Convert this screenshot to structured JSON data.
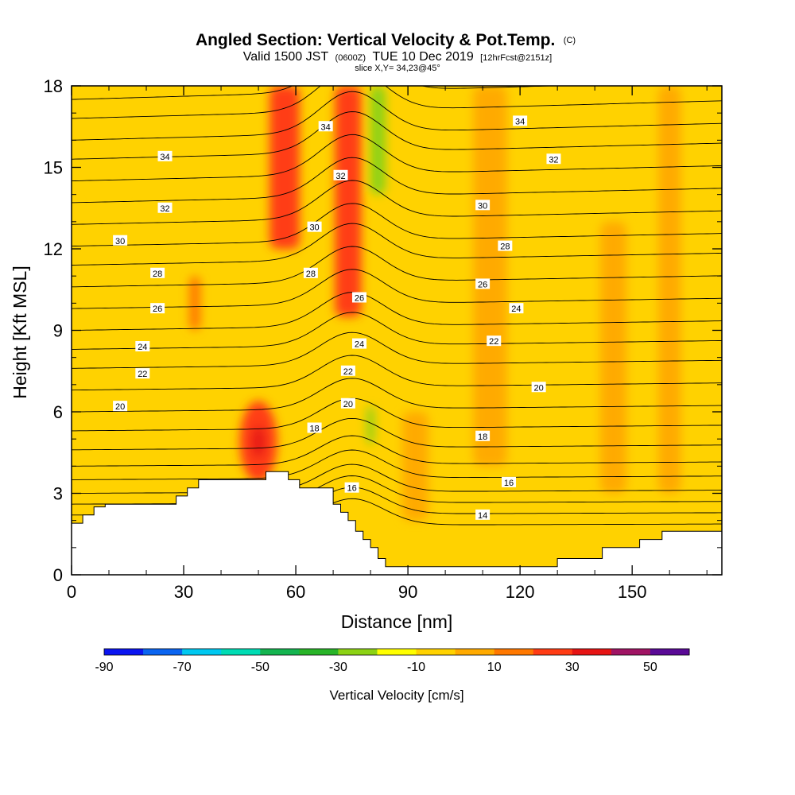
{
  "chart_data": {
    "type": "heatmap",
    "title": "Angled Section: Vertical Velocity & Pot.Temp.",
    "title_unit": "(C)",
    "subtitle": {
      "prefix": "Valid 1500 JST",
      "utc": "(0600Z)",
      "date": "TUE 10 Dec 2019",
      "forecast": "[12hrFcst@2151z]"
    },
    "slice_label": "slice X,Y= 34,23@45°",
    "xlabel": "Distance [nm]",
    "ylabel": "Height [Kft MSL]",
    "xlim": [
      0,
      174
    ],
    "ylim": [
      0,
      18
    ],
    "x_ticks": [
      0,
      30,
      60,
      90,
      120,
      150
    ],
    "y_ticks": [
      0,
      3,
      6,
      9,
      12,
      15,
      18
    ],
    "colorbar": {
      "label": "Vertical Velocity [cm/s]",
      "tick_labels": [
        "-90",
        "-70",
        "-50",
        "-30",
        "-10",
        "10",
        "30",
        "50"
      ],
      "tick_values": [
        -90,
        -70,
        -50,
        -30,
        -10,
        10,
        30,
        50
      ],
      "levels": [
        -90,
        -80,
        -70,
        -60,
        -50,
        -40,
        -30,
        -20,
        -10,
        0,
        10,
        20,
        30,
        40,
        50,
        60
      ],
      "colors": [
        "#0a14f0",
        "#0a64f0",
        "#00c8f0",
        "#00dcb4",
        "#14b450",
        "#28b428",
        "#8cd214",
        "#ffff00",
        "#ffd200",
        "#ffaa00",
        "#ff7800",
        "#ff3c14",
        "#e61414",
        "#a01464",
        "#5a0a96"
      ]
    },
    "background_field_color": "#ffd200",
    "velocity_features": [
      {
        "type": "column",
        "x": 57,
        "width": 8,
        "y0": 12,
        "y1": 18,
        "value": 22
      },
      {
        "type": "column",
        "x": 74,
        "width": 7,
        "y0": 9.5,
        "y1": 18,
        "value": 28
      },
      {
        "type": "column",
        "x": 82,
        "width": 4,
        "y0": 14,
        "y1": 18,
        "value": -28
      },
      {
        "type": "column",
        "x": 80,
        "width": 2,
        "y0": 4.8,
        "y1": 6.2,
        "value": -28
      },
      {
        "type": "blob",
        "x": 50,
        "y": 4.9,
        "rx": 5,
        "ry": 1.5,
        "value": 24
      },
      {
        "type": "blob",
        "x": 50,
        "y": 4.9,
        "rx": 1.8,
        "ry": 0.6,
        "value": 32
      },
      {
        "type": "column",
        "x": 69,
        "width": 4,
        "y0": 3,
        "y1": 7,
        "value": -8
      },
      {
        "type": "column",
        "x": 33,
        "width": 3,
        "y0": 9,
        "y1": 11,
        "value": 16
      },
      {
        "type": "column",
        "x": 10,
        "width": 8,
        "y0": 14,
        "y1": 18,
        "value": -8
      },
      {
        "type": "column",
        "x": 112,
        "width": 9,
        "y0": 4,
        "y1": 18,
        "value": 6
      },
      {
        "type": "column",
        "x": 145,
        "width": 7,
        "y0": 3,
        "y1": 13,
        "value": 6
      },
      {
        "type": "column",
        "x": 160,
        "width": 6,
        "y0": 3,
        "y1": 18,
        "value": 6
      },
      {
        "type": "column",
        "x": 92,
        "width": 7,
        "y0": 2,
        "y1": 6,
        "value": 6
      },
      {
        "type": "column",
        "x": 22,
        "width": 6,
        "y0": 3,
        "y1": 9,
        "value": -4
      }
    ],
    "terrain": [
      [
        0,
        1.9
      ],
      [
        3,
        1.9
      ],
      [
        3,
        2.2
      ],
      [
        6,
        2.2
      ],
      [
        6,
        2.5
      ],
      [
        9,
        2.5
      ],
      [
        9,
        2.6
      ],
      [
        28,
        2.6
      ],
      [
        28,
        2.9
      ],
      [
        31,
        2.9
      ],
      [
        31,
        3.2
      ],
      [
        34,
        3.2
      ],
      [
        34,
        3.5
      ],
      [
        52,
        3.5
      ],
      [
        52,
        3.8
      ],
      [
        58,
        3.8
      ],
      [
        58,
        3.5
      ],
      [
        61,
        3.5
      ],
      [
        61,
        3.2
      ],
      [
        70,
        3.2
      ],
      [
        70,
        2.6
      ],
      [
        72,
        2.6
      ],
      [
        72,
        2.3
      ],
      [
        74,
        2.3
      ],
      [
        74,
        2.0
      ],
      [
        76,
        2.0
      ],
      [
        76,
        1.6
      ],
      [
        78,
        1.6
      ],
      [
        78,
        1.3
      ],
      [
        80,
        1.3
      ],
      [
        80,
        1.0
      ],
      [
        82,
        1.0
      ],
      [
        82,
        0.6
      ],
      [
        84,
        0.6
      ],
      [
        84,
        0.3
      ],
      [
        130,
        0.3
      ],
      [
        130,
        0.6
      ],
      [
        142,
        0.6
      ],
      [
        142,
        1.0
      ],
      [
        152,
        1.0
      ],
      [
        152,
        1.3
      ],
      [
        158,
        1.3
      ],
      [
        158,
        1.6
      ],
      [
        174,
        1.6
      ],
      [
        174,
        0
      ],
      [
        0,
        0
      ]
    ],
    "isentropes": {
      "label_color": "#000000",
      "start_level": 14,
      "base_heights": [
        1.8,
        2.2,
        2.6,
        3.0,
        3.5,
        4.0,
        4.6,
        5.3,
        6.0,
        6.8,
        7.6,
        8.3,
        9.0,
        9.8,
        10.6,
        11.4,
        12.1,
        12.9,
        13.7,
        14.5,
        15.3,
        16.0,
        16.8,
        17.5
      ],
      "ridge": {
        "x": 75,
        "width": 12,
        "amplitude": 0.9,
        "upper_amplitude": 1.6
      },
      "labels": [
        {
          "text": "14",
          "x": 110,
          "y": 2.2
        },
        {
          "text": "16",
          "x": 75,
          "y": 3.2
        },
        {
          "text": "16",
          "x": 117,
          "y": 3.4
        },
        {
          "text": "18",
          "x": 65,
          "y": 5.4
        },
        {
          "text": "18",
          "x": 110,
          "y": 5.1
        },
        {
          "text": "20",
          "x": 13,
          "y": 6.2
        },
        {
          "text": "20",
          "x": 74,
          "y": 6.3
        },
        {
          "text": "20",
          "x": 125,
          "y": 6.9
        },
        {
          "text": "22",
          "x": 19,
          "y": 7.4
        },
        {
          "text": "22",
          "x": 74,
          "y": 7.5
        },
        {
          "text": "22",
          "x": 113,
          "y": 8.6
        },
        {
          "text": "24",
          "x": 19,
          "y": 8.4
        },
        {
          "text": "24",
          "x": 77,
          "y": 8.5
        },
        {
          "text": "24",
          "x": 119,
          "y": 9.8
        },
        {
          "text": "26",
          "x": 23,
          "y": 9.8
        },
        {
          "text": "26",
          "x": 77,
          "y": 10.2
        },
        {
          "text": "26",
          "x": 110,
          "y": 10.7
        },
        {
          "text": "28",
          "x": 23,
          "y": 11.1
        },
        {
          "text": "28",
          "x": 64,
          "y": 11.1
        },
        {
          "text": "28",
          "x": 116,
          "y": 12.1
        },
        {
          "text": "30",
          "x": 13,
          "y": 12.3
        },
        {
          "text": "30",
          "x": 65,
          "y": 12.8
        },
        {
          "text": "30",
          "x": 110,
          "y": 13.6
        },
        {
          "text": "32",
          "x": 25,
          "y": 13.5
        },
        {
          "text": "32",
          "x": 72,
          "y": 14.7
        },
        {
          "text": "32",
          "x": 129,
          "y": 15.3
        },
        {
          "text": "34",
          "x": 25,
          "y": 15.4
        },
        {
          "text": "34",
          "x": 68,
          "y": 16.5
        },
        {
          "text": "34",
          "x": 120,
          "y": 16.7
        }
      ]
    }
  }
}
